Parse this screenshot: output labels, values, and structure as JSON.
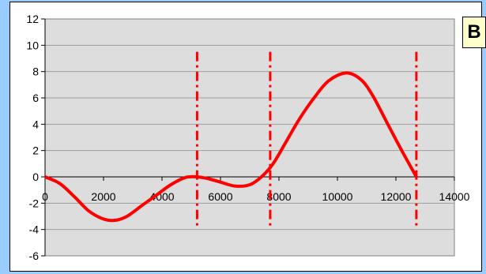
{
  "chart_data": {
    "type": "line",
    "label": "B",
    "title": "",
    "xlabel": "",
    "ylabel": "",
    "xlim": [
      0,
      14000
    ],
    "ylim": [
      -6,
      12
    ],
    "xticks": [
      0,
      2000,
      4000,
      6000,
      8000,
      10000,
      12000,
      14000
    ],
    "yticks": [
      -6,
      -4,
      -2,
      0,
      2,
      4,
      6,
      8,
      10,
      12
    ],
    "grid": true,
    "legend": "none",
    "series": [
      {
        "color": "#FF0000",
        "x": [
          0,
          500,
          1000,
          1500,
          2000,
          2400,
          2800,
          3300,
          3800,
          4300,
          4800,
          5200,
          5600,
          6000,
          6500,
          7000,
          7400,
          7800,
          8200,
          8700,
          9200,
          9700,
          10300,
          10800,
          11200,
          11700,
          12200,
          12700
        ],
        "y": [
          0,
          -0.5,
          -1.5,
          -2.6,
          -3.2,
          -3.3,
          -3.0,
          -2.2,
          -1.4,
          -0.6,
          -0.05,
          0.0,
          -0.15,
          -0.4,
          -0.7,
          -0.6,
          0.0,
          1.0,
          2.5,
          4.4,
          6.0,
          7.3,
          7.9,
          7.4,
          6.2,
          4.1,
          2.0,
          0.0
        ]
      }
    ],
    "vertical_lines": [
      {
        "x": 5200,
        "color": "#FF0000",
        "style": "dash-dot"
      },
      {
        "x": 7700,
        "color": "#FF0000",
        "style": "dash-dot"
      },
      {
        "x": 12700,
        "color": "#FF0000",
        "style": "dash-dot"
      }
    ],
    "colors": {
      "background": "#99CCFF",
      "plot_area": "#DDDDDD",
      "curve": "#FF0000",
      "badge": "#FFFFCC"
    }
  }
}
